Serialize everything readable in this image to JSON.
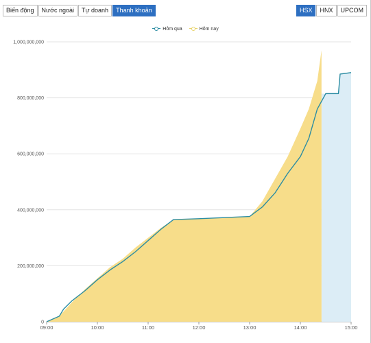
{
  "tabs": [
    {
      "label": "Biến động"
    },
    {
      "label": "Nước ngoài"
    },
    {
      "label": "Tự doanh"
    },
    {
      "label": "Thanh khoản",
      "active": true
    }
  ],
  "exchanges": [
    {
      "label": "HSX",
      "active": true
    },
    {
      "label": "HNX"
    },
    {
      "label": "UPCOM"
    }
  ],
  "colors": {
    "accent": "#2d6fc1",
    "hom_qua": "#2c8da3",
    "hom_nay": "#f7dd8a"
  },
  "chart_data": {
    "type": "area",
    "title": "",
    "xlabel": "",
    "ylabel": "",
    "legend_position": "top-center",
    "grid": "horizontal",
    "xlim": [
      "09:00",
      "15:00"
    ],
    "ylim": [
      0,
      1000000000
    ],
    "x_ticks": [
      "09:00",
      "10:00",
      "11:00",
      "12:00",
      "13:00",
      "14:00",
      "15:00"
    ],
    "y_ticks": [
      "0",
      "200,000,000",
      "400,000,000",
      "600,000,000",
      "800,000,000",
      "1,000,000,000"
    ],
    "series": [
      {
        "name": "Hôm qua",
        "type": "line",
        "color": "#2c8da3",
        "points": [
          [
            "09:00",
            0
          ],
          [
            "09:15",
            20000000
          ],
          [
            "09:20",
            45000000
          ],
          [
            "09:30",
            75000000
          ],
          [
            "09:45",
            110000000
          ],
          [
            "10:00",
            150000000
          ],
          [
            "10:15",
            185000000
          ],
          [
            "10:30",
            215000000
          ],
          [
            "10:45",
            250000000
          ],
          [
            "11:00",
            290000000
          ],
          [
            "11:15",
            330000000
          ],
          [
            "11:30",
            365000000
          ],
          [
            "12:00",
            368000000
          ],
          [
            "12:30",
            372000000
          ],
          [
            "13:00",
            376000000
          ],
          [
            "13:15",
            410000000
          ],
          [
            "13:30",
            460000000
          ],
          [
            "13:45",
            530000000
          ],
          [
            "14:00",
            590000000
          ],
          [
            "14:10",
            655000000
          ],
          [
            "14:20",
            760000000
          ],
          [
            "14:30",
            815000000
          ],
          [
            "14:45",
            815000000
          ],
          [
            "14:47",
            885000000
          ],
          [
            "15:00",
            890000000
          ]
        ]
      },
      {
        "name": "Hôm nay",
        "type": "area",
        "color": "#f7dd8a",
        "points": [
          [
            "09:00",
            0
          ],
          [
            "09:15",
            20000000
          ],
          [
            "09:30",
            70000000
          ],
          [
            "09:45",
            115000000
          ],
          [
            "10:00",
            155000000
          ],
          [
            "10:15",
            195000000
          ],
          [
            "10:30",
            225000000
          ],
          [
            "10:45",
            265000000
          ],
          [
            "11:00",
            300000000
          ],
          [
            "11:15",
            335000000
          ],
          [
            "11:30",
            365000000
          ],
          [
            "12:00",
            368000000
          ],
          [
            "12:30",
            372000000
          ],
          [
            "13:00",
            376000000
          ],
          [
            "13:15",
            430000000
          ],
          [
            "13:30",
            510000000
          ],
          [
            "13:45",
            590000000
          ],
          [
            "14:00",
            690000000
          ],
          [
            "14:10",
            760000000
          ],
          [
            "14:20",
            860000000
          ],
          [
            "14:25",
            970000000
          ],
          [
            "14:25",
            0
          ]
        ]
      }
    ]
  }
}
